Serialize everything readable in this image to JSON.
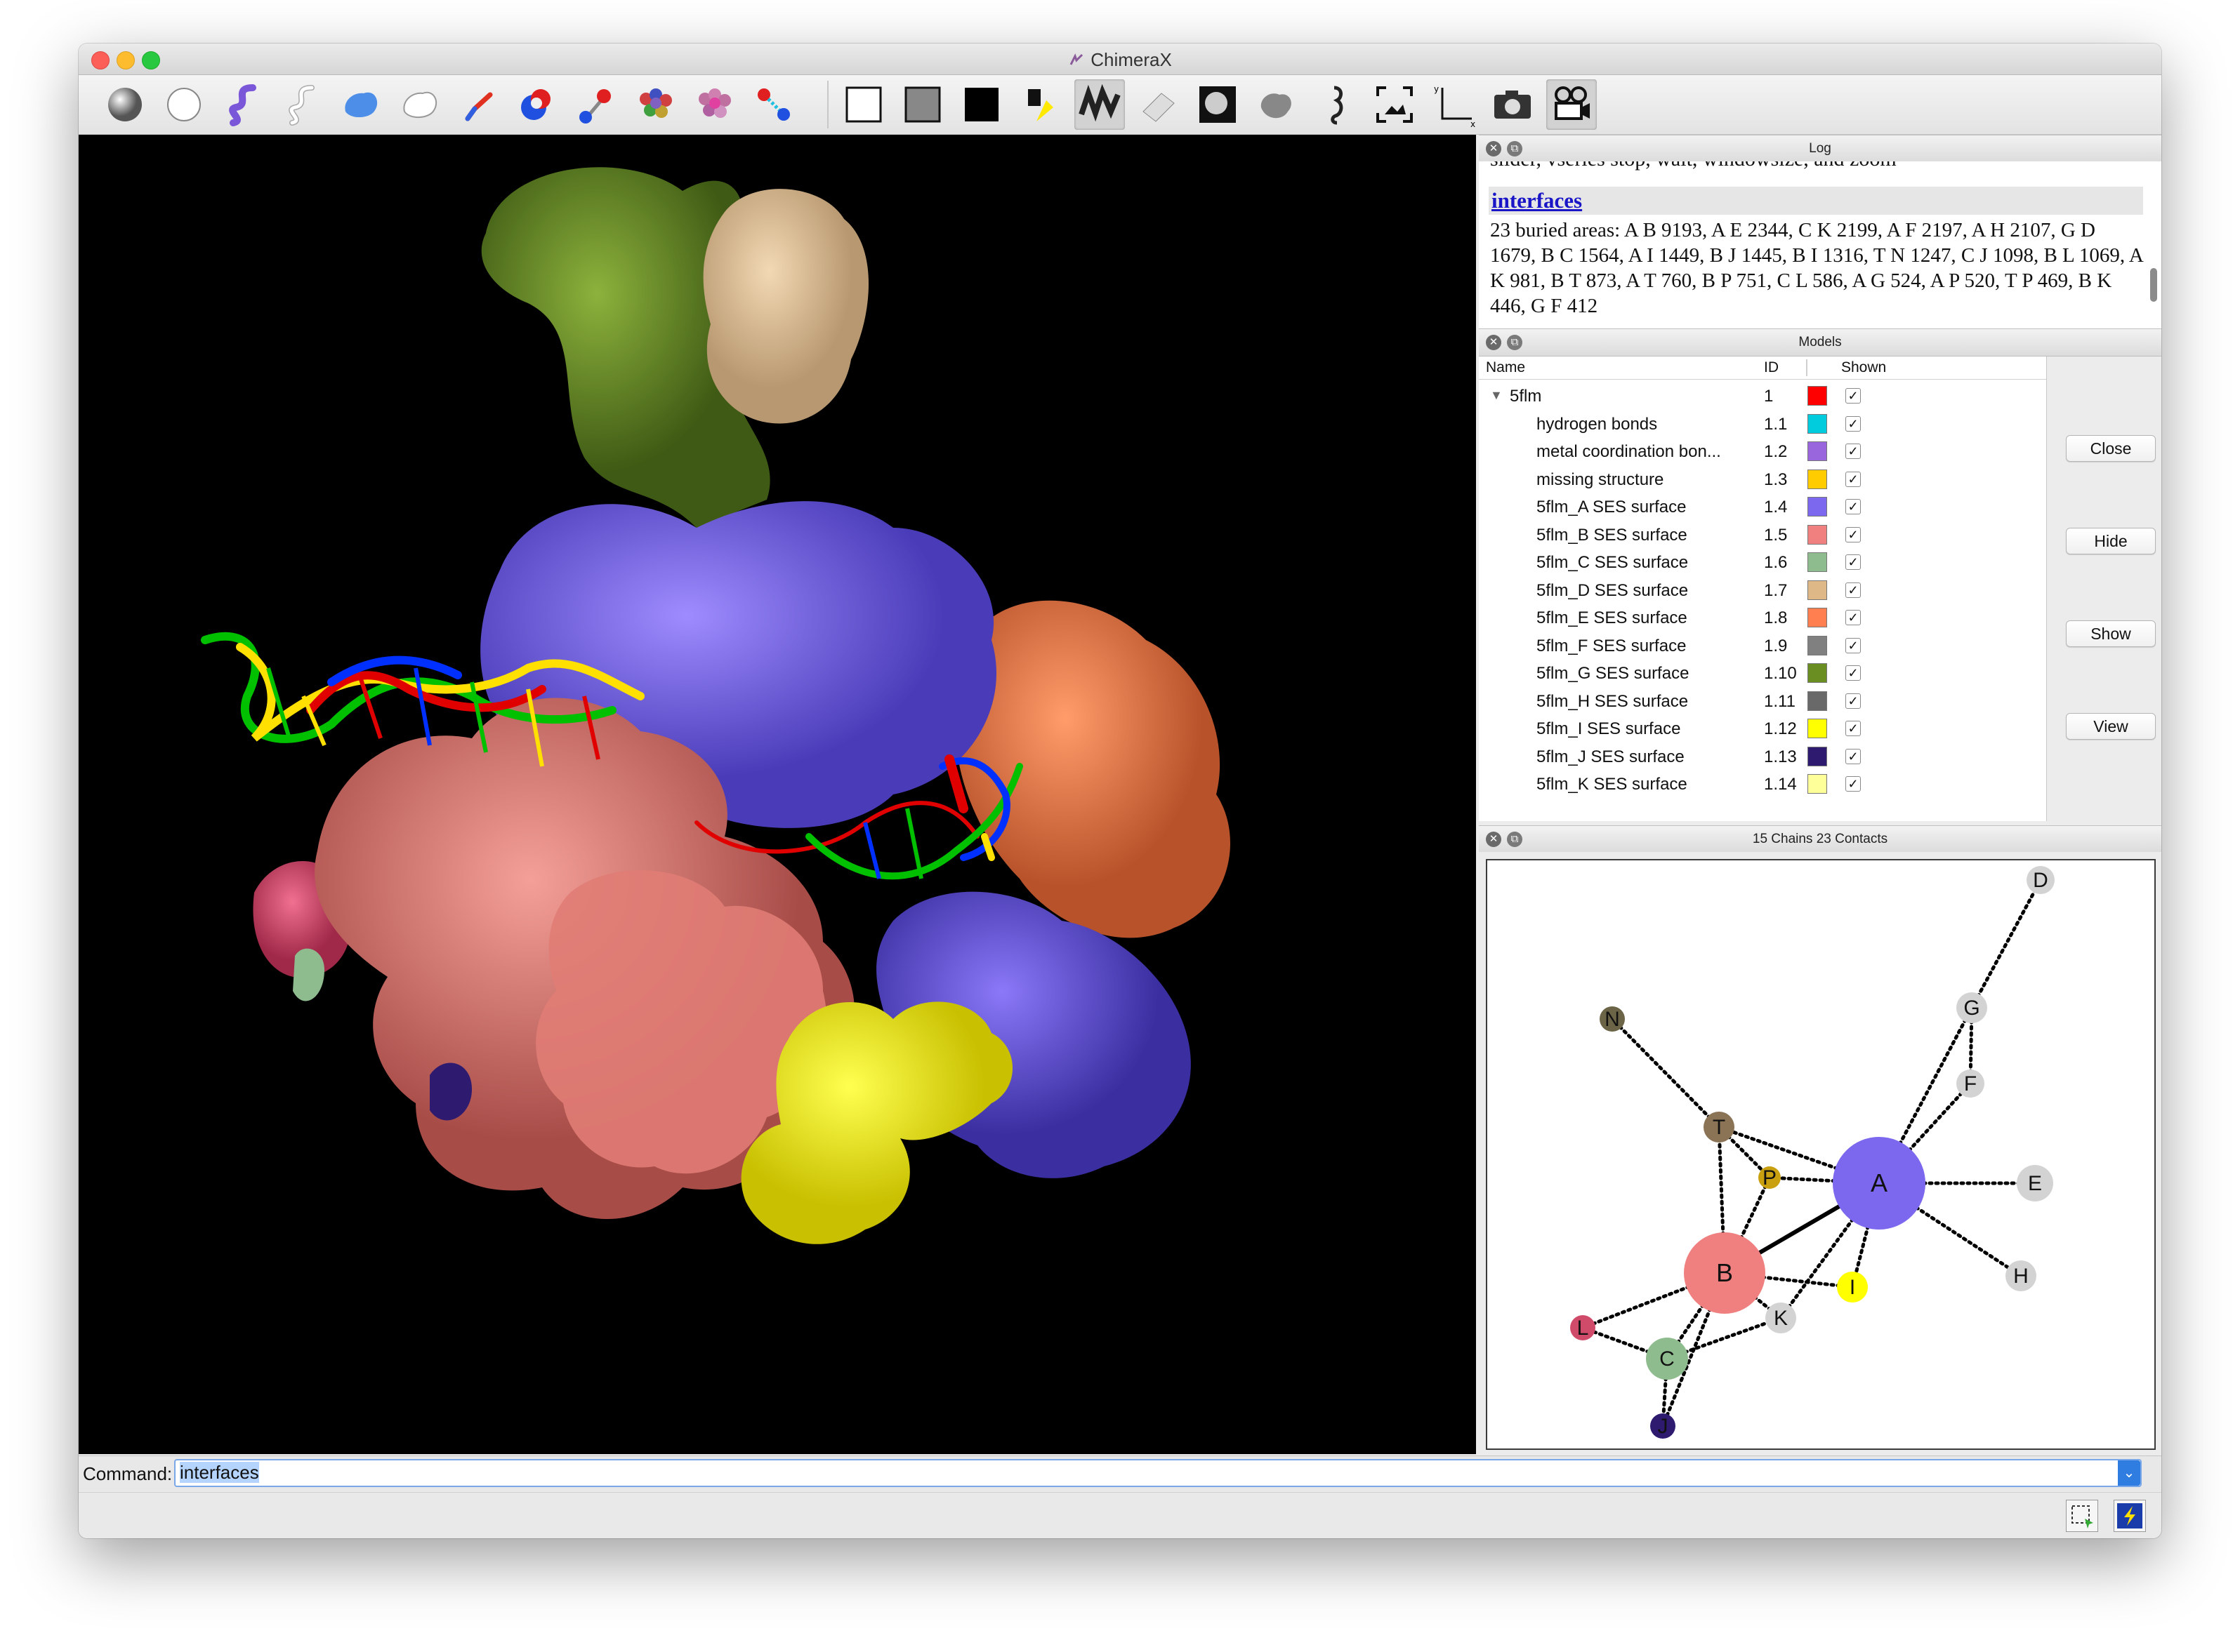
{
  "window": {
    "title": "ChimeraX"
  },
  "toolbar": {
    "icons": [
      "ball-icon",
      "atom-sphere-icon",
      "ribbon-icon",
      "ribbon-outline-icon",
      "surface-blue-icon",
      "surface-outline-icon",
      "stick-icon",
      "sphere-atoms-icon",
      "ball-stick-icon",
      "molecule-colored-icon",
      "molecule-heteroatom-icon",
      "bond-icon",
      "white-background-icon",
      "gray-background-icon",
      "black-background-icon",
      "light-simple-icon",
      "light-soft-icon",
      "light-full-icon",
      "silhouette-icon",
      "lighting-flat-icon",
      "blob-icon",
      "seahorse-icon",
      "view-all-icon",
      "axes-icon",
      "camera-icon",
      "movie-icon"
    ]
  },
  "log": {
    "title": "Log",
    "clipped_text": "slider, vseries stop, wait, windowsize, and zoom",
    "heading": "interfaces",
    "body": "23 buried areas: A B 9193, A E 2344, C K 2199, A F 2197, A H 2107, G D 1679, B C 1564, A I 1449, B J 1445, B I 1316, T N 1247, C J 1098, B L 1069, A K 981, B T 873, A T 760, B P 751, C L 586, A G 524, A P 520, T P 469, B K 446, G F 412"
  },
  "models": {
    "title": "Models",
    "columns": {
      "name": "Name",
      "id": "ID",
      "color": "",
      "shown": "Shown"
    },
    "rows": [
      {
        "name": "5flm",
        "id": "1",
        "color": "#ff0000",
        "shown": true
      },
      {
        "name": "hydrogen bonds",
        "id": "1.1",
        "color": "#00ccdd",
        "shown": true
      },
      {
        "name": "metal coordination bon...",
        "id": "1.2",
        "color": "#9966dd",
        "shown": true
      },
      {
        "name": "missing structure",
        "id": "1.3",
        "color": "#ffcc00",
        "shown": true
      },
      {
        "name": "5flm_A SES surface",
        "id": "1.4",
        "color": "#7b68ee",
        "shown": true
      },
      {
        "name": "5flm_B SES surface",
        "id": "1.5",
        "color": "#f08080",
        "shown": true
      },
      {
        "name": "5flm_C SES surface",
        "id": "1.6",
        "color": "#8fbc8f",
        "shown": true
      },
      {
        "name": "5flm_D SES surface",
        "id": "1.7",
        "color": "#deb887",
        "shown": true
      },
      {
        "name": "5flm_E SES surface",
        "id": "1.8",
        "color": "#ff7f50",
        "shown": true
      },
      {
        "name": "5flm_F SES surface",
        "id": "1.9",
        "color": "#808080",
        "shown": true
      },
      {
        "name": "5flm_G SES surface",
        "id": "1.10",
        "color": "#6b8e23",
        "shown": true
      },
      {
        "name": "5flm_H SES surface",
        "id": "1.11",
        "color": "#696969",
        "shown": true
      },
      {
        "name": "5flm_I SES surface",
        "id": "1.12",
        "color": "#ffff00",
        "shown": true
      },
      {
        "name": "5flm_J SES surface",
        "id": "1.13",
        "color": "#2e1a6e",
        "shown": true
      },
      {
        "name": "5flm_K SES surface",
        "id": "1.14",
        "color": "#ffff99",
        "shown": true
      }
    ],
    "buttons": {
      "close": "Close",
      "hide": "Hide",
      "show": "Show",
      "view": "View"
    }
  },
  "contacts": {
    "title": "15 Chains 23 Contacts",
    "nodes": [
      {
        "label": "A",
        "color": "#7b68ee"
      },
      {
        "label": "B",
        "color": "#f08080"
      },
      {
        "label": "C",
        "color": "#8fbc8f"
      },
      {
        "label": "D",
        "color": "#d3d3d3"
      },
      {
        "label": "E",
        "color": "#d3d3d3"
      },
      {
        "label": "F",
        "color": "#d3d3d3"
      },
      {
        "label": "G",
        "color": "#d3d3d3"
      },
      {
        "label": "H",
        "color": "#d3d3d3"
      },
      {
        "label": "I",
        "color": "#ffff00"
      },
      {
        "label": "J",
        "color": "#2e1a6e"
      },
      {
        "label": "K",
        "color": "#d3d3d3"
      },
      {
        "label": "L",
        "color": "#d04a6a"
      },
      {
        "label": "N",
        "color": "#6b6447"
      },
      {
        "label": "P",
        "color": "#c8a010"
      },
      {
        "label": "T",
        "color": "#8b7355"
      }
    ]
  },
  "command": {
    "label": "Command:",
    "value": "interfaces"
  }
}
